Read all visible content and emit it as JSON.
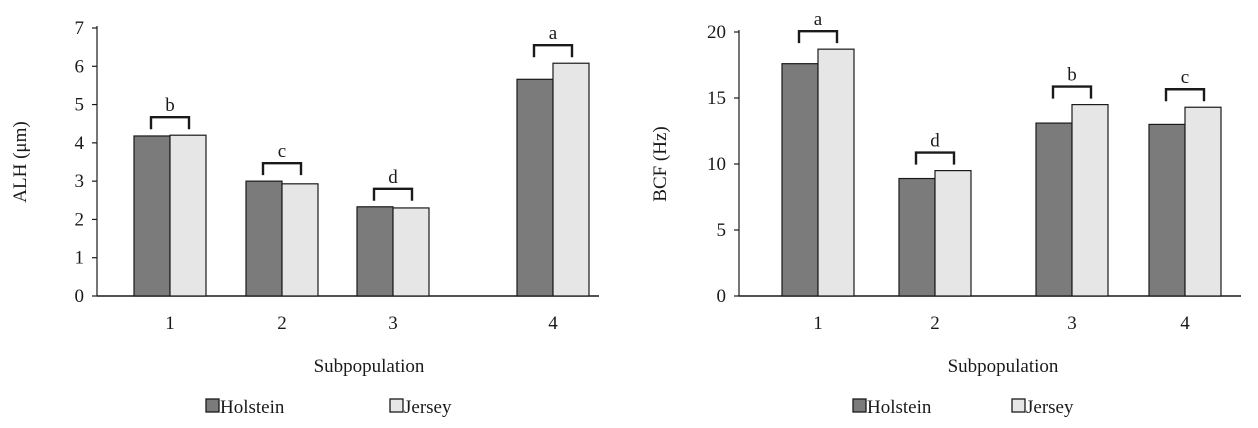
{
  "chart_data": [
    {
      "type": "bar",
      "title": "",
      "xlabel": "Subpopulation",
      "ylabel": "ALH (μm)",
      "categories": [
        "1",
        "2",
        "3",
        "4"
      ],
      "series": [
        {
          "name": "Holstein",
          "values": [
            4.18,
            3.0,
            2.33,
            5.66
          ],
          "color": "#7b7b7b"
        },
        {
          "name": "Jersey",
          "values": [
            4.2,
            2.93,
            2.3,
            6.08
          ],
          "color": "#e6e6e6"
        }
      ],
      "group_labels": [
        "b",
        "c",
        "d",
        "a"
      ],
      "ylim": [
        0,
        7
      ],
      "yticks": [
        0,
        1,
        2,
        3,
        4,
        5,
        6,
        7
      ],
      "ytick_labels": [
        "0",
        "1",
        "2",
        "3",
        "4",
        "5",
        "6",
        "7"
      ],
      "grid": false,
      "legend_position": "bottom"
    },
    {
      "type": "bar",
      "title": "",
      "xlabel": "Subpopulation",
      "ylabel": "BCF (Hz)",
      "categories": [
        "1",
        "2",
        "3",
        "4"
      ],
      "series": [
        {
          "name": "Holstein",
          "values": [
            17.6,
            8.9,
            13.1,
            13.0
          ],
          "color": "#7b7b7b"
        },
        {
          "name": "Jersey",
          "values": [
            18.7,
            9.5,
            14.5,
            14.3
          ],
          "color": "#e6e6e6"
        }
      ],
      "group_labels": [
        "a",
        "d",
        "b",
        "c"
      ],
      "ylim": [
        0,
        20
      ],
      "yticks": [
        0,
        5,
        10,
        15,
        20
      ],
      "ytick_labels": [
        "0",
        "5",
        "10",
        "15",
        "20"
      ],
      "grid": false,
      "legend_position": "bottom"
    }
  ]
}
